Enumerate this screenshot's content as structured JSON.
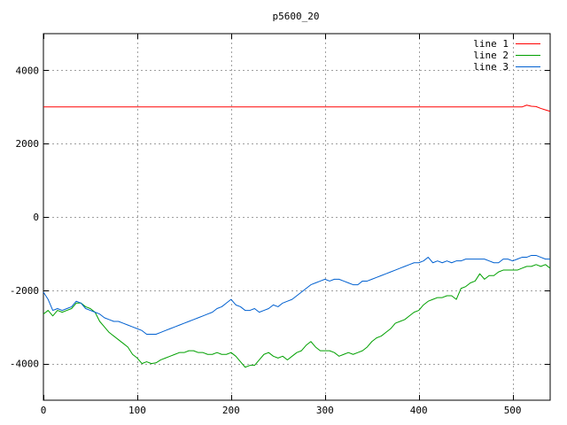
{
  "chart_data": {
    "type": "line",
    "title": "p5600_20",
    "xlabel": "",
    "ylabel": "",
    "xlim": [
      0,
      540
    ],
    "ylim": [
      -5000,
      5000
    ],
    "x_ticks": [
      0,
      100,
      200,
      300,
      400,
      500
    ],
    "y_ticks": [
      -4000,
      -2000,
      0,
      2000,
      4000
    ],
    "x_tick_labels": [
      "0",
      "100",
      "200",
      "300",
      "400",
      "500"
    ],
    "y_tick_labels": [
      "-4000",
      "-2000",
      "0",
      "2000",
      "4000"
    ],
    "grid": true,
    "legend_position": "top-right",
    "series": [
      {
        "name": "line 1",
        "color": "#ff0000",
        "points": [
          [
            0,
            3000
          ],
          [
            100,
            3000
          ],
          [
            200,
            3000
          ],
          [
            300,
            3000
          ],
          [
            400,
            3000
          ],
          [
            500,
            3000
          ],
          [
            510,
            3000
          ],
          [
            515,
            3050
          ],
          [
            520,
            3020
          ],
          [
            525,
            3010
          ],
          [
            530,
            2960
          ],
          [
            535,
            2920
          ],
          [
            540,
            2880
          ]
        ]
      },
      {
        "name": "line 2",
        "color": "#00a000",
        "points": [
          [
            0,
            -2650
          ],
          [
            5,
            -2550
          ],
          [
            10,
            -2700
          ],
          [
            15,
            -2550
          ],
          [
            20,
            -2600
          ],
          [
            25,
            -2550
          ],
          [
            30,
            -2500
          ],
          [
            35,
            -2350
          ],
          [
            40,
            -2350
          ],
          [
            45,
            -2450
          ],
          [
            50,
            -2500
          ],
          [
            55,
            -2600
          ],
          [
            60,
            -2850
          ],
          [
            65,
            -3000
          ],
          [
            70,
            -3150
          ],
          [
            75,
            -3250
          ],
          [
            80,
            -3350
          ],
          [
            85,
            -3450
          ],
          [
            90,
            -3550
          ],
          [
            95,
            -3750
          ],
          [
            100,
            -3850
          ],
          [
            105,
            -4000
          ],
          [
            110,
            -3950
          ],
          [
            115,
            -4000
          ],
          [
            120,
            -3980
          ],
          [
            125,
            -3900
          ],
          [
            130,
            -3850
          ],
          [
            135,
            -3800
          ],
          [
            140,
            -3750
          ],
          [
            145,
            -3700
          ],
          [
            150,
            -3700
          ],
          [
            155,
            -3650
          ],
          [
            160,
            -3650
          ],
          [
            165,
            -3700
          ],
          [
            170,
            -3700
          ],
          [
            175,
            -3750
          ],
          [
            180,
            -3750
          ],
          [
            185,
            -3700
          ],
          [
            190,
            -3750
          ],
          [
            195,
            -3750
          ],
          [
            200,
            -3700
          ],
          [
            205,
            -3800
          ],
          [
            210,
            -3950
          ],
          [
            215,
            -4100
          ],
          [
            220,
            -4050
          ],
          [
            225,
            -4050
          ],
          [
            230,
            -3900
          ],
          [
            235,
            -3750
          ],
          [
            240,
            -3700
          ],
          [
            245,
            -3800
          ],
          [
            250,
            -3850
          ],
          [
            255,
            -3800
          ],
          [
            260,
            -3900
          ],
          [
            265,
            -3800
          ],
          [
            270,
            -3700
          ],
          [
            275,
            -3650
          ],
          [
            280,
            -3500
          ],
          [
            285,
            -3400
          ],
          [
            290,
            -3550
          ],
          [
            295,
            -3650
          ],
          [
            300,
            -3650
          ],
          [
            305,
            -3650
          ],
          [
            310,
            -3700
          ],
          [
            315,
            -3800
          ],
          [
            320,
            -3750
          ],
          [
            325,
            -3700
          ],
          [
            330,
            -3750
          ],
          [
            335,
            -3700
          ],
          [
            340,
            -3650
          ],
          [
            345,
            -3550
          ],
          [
            350,
            -3400
          ],
          [
            355,
            -3300
          ],
          [
            360,
            -3250
          ],
          [
            365,
            -3150
          ],
          [
            370,
            -3050
          ],
          [
            375,
            -2900
          ],
          [
            380,
            -2850
          ],
          [
            385,
            -2800
          ],
          [
            390,
            -2700
          ],
          [
            395,
            -2600
          ],
          [
            400,
            -2550
          ],
          [
            405,
            -2400
          ],
          [
            410,
            -2300
          ],
          [
            415,
            -2250
          ],
          [
            420,
            -2200
          ],
          [
            425,
            -2200
          ],
          [
            430,
            -2150
          ],
          [
            435,
            -2150
          ],
          [
            440,
            -2250
          ],
          [
            445,
            -1950
          ],
          [
            450,
            -1900
          ],
          [
            455,
            -1800
          ],
          [
            460,
            -1750
          ],
          [
            465,
            -1550
          ],
          [
            470,
            -1700
          ],
          [
            475,
            -1600
          ],
          [
            480,
            -1600
          ],
          [
            485,
            -1500
          ],
          [
            490,
            -1450
          ],
          [
            495,
            -1450
          ],
          [
            500,
            -1450
          ],
          [
            505,
            -1450
          ],
          [
            510,
            -1400
          ],
          [
            515,
            -1350
          ],
          [
            520,
            -1350
          ],
          [
            525,
            -1300
          ],
          [
            530,
            -1350
          ],
          [
            535,
            -1300
          ],
          [
            540,
            -1400
          ]
        ]
      },
      {
        "name": "line 3",
        "color": "#0060d0",
        "points": [
          [
            0,
            -2050
          ],
          [
            5,
            -2250
          ],
          [
            10,
            -2550
          ],
          [
            15,
            -2500
          ],
          [
            20,
            -2550
          ],
          [
            25,
            -2500
          ],
          [
            30,
            -2450
          ],
          [
            35,
            -2300
          ],
          [
            40,
            -2350
          ],
          [
            45,
            -2500
          ],
          [
            50,
            -2550
          ],
          [
            55,
            -2600
          ],
          [
            60,
            -2650
          ],
          [
            65,
            -2750
          ],
          [
            70,
            -2800
          ],
          [
            75,
            -2850
          ],
          [
            80,
            -2850
          ],
          [
            85,
            -2900
          ],
          [
            90,
            -2950
          ],
          [
            95,
            -3000
          ],
          [
            100,
            -3050
          ],
          [
            105,
            -3100
          ],
          [
            110,
            -3200
          ],
          [
            115,
            -3200
          ],
          [
            120,
            -3200
          ],
          [
            125,
            -3150
          ],
          [
            130,
            -3100
          ],
          [
            135,
            -3050
          ],
          [
            140,
            -3000
          ],
          [
            145,
            -2950
          ],
          [
            150,
            -2900
          ],
          [
            155,
            -2850
          ],
          [
            160,
            -2800
          ],
          [
            165,
            -2750
          ],
          [
            170,
            -2700
          ],
          [
            175,
            -2650
          ],
          [
            180,
            -2600
          ],
          [
            185,
            -2500
          ],
          [
            190,
            -2450
          ],
          [
            195,
            -2350
          ],
          [
            200,
            -2250
          ],
          [
            205,
            -2400
          ],
          [
            210,
            -2450
          ],
          [
            215,
            -2550
          ],
          [
            220,
            -2550
          ],
          [
            225,
            -2500
          ],
          [
            230,
            -2600
          ],
          [
            235,
            -2550
          ],
          [
            240,
            -2500
          ],
          [
            245,
            -2400
          ],
          [
            250,
            -2450
          ],
          [
            255,
            -2350
          ],
          [
            260,
            -2300
          ],
          [
            265,
            -2250
          ],
          [
            270,
            -2150
          ],
          [
            275,
            -2050
          ],
          [
            280,
            -1950
          ],
          [
            285,
            -1850
          ],
          [
            290,
            -1800
          ],
          [
            295,
            -1750
          ],
          [
            300,
            -1700
          ],
          [
            305,
            -1750
          ],
          [
            310,
            -1700
          ],
          [
            315,
            -1700
          ],
          [
            320,
            -1750
          ],
          [
            325,
            -1800
          ],
          [
            330,
            -1850
          ],
          [
            335,
            -1850
          ],
          [
            340,
            -1750
          ],
          [
            345,
            -1750
          ],
          [
            350,
            -1700
          ],
          [
            355,
            -1650
          ],
          [
            360,
            -1600
          ],
          [
            365,
            -1550
          ],
          [
            370,
            -1500
          ],
          [
            375,
            -1450
          ],
          [
            380,
            -1400
          ],
          [
            385,
            -1350
          ],
          [
            390,
            -1300
          ],
          [
            395,
            -1250
          ],
          [
            400,
            -1250
          ],
          [
            405,
            -1200
          ],
          [
            410,
            -1100
          ],
          [
            415,
            -1250
          ],
          [
            420,
            -1200
          ],
          [
            425,
            -1250
          ],
          [
            430,
            -1200
          ],
          [
            435,
            -1250
          ],
          [
            440,
            -1200
          ],
          [
            445,
            -1200
          ],
          [
            450,
            -1150
          ],
          [
            455,
            -1150
          ],
          [
            460,
            -1150
          ],
          [
            465,
            -1150
          ],
          [
            470,
            -1150
          ],
          [
            475,
            -1200
          ],
          [
            480,
            -1250
          ],
          [
            485,
            -1250
          ],
          [
            490,
            -1150
          ],
          [
            495,
            -1150
          ],
          [
            500,
            -1200
          ],
          [
            505,
            -1150
          ],
          [
            510,
            -1100
          ],
          [
            515,
            -1100
          ],
          [
            520,
            -1050
          ],
          [
            525,
            -1050
          ],
          [
            530,
            -1100
          ],
          [
            535,
            -1150
          ],
          [
            540,
            -1150
          ]
        ]
      }
    ]
  }
}
